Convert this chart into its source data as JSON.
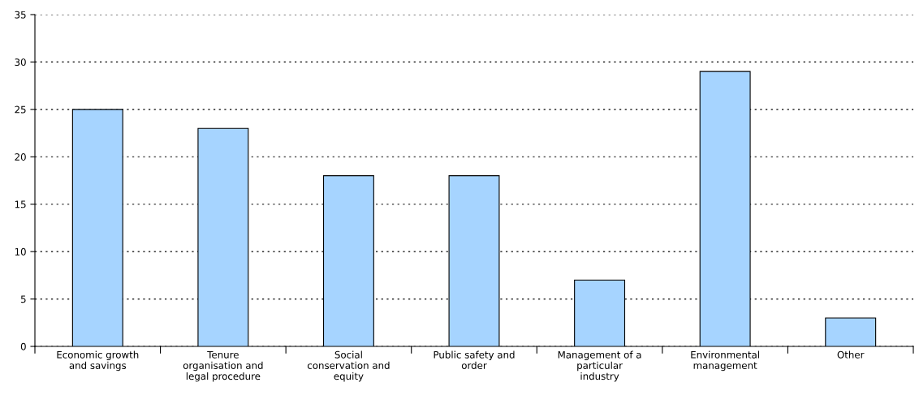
{
  "chart_data": {
    "type": "bar",
    "categories": [
      "Economic growth\nand savings",
      "Tenure\norganisation and\nlegal procedure",
      "Social\nconservation and\nequity",
      "Public safety and\norder",
      "Management of a\nparticular\nindustry",
      "Environmental\nmanagement",
      "Other"
    ],
    "values": [
      25,
      23,
      18,
      18,
      7,
      29,
      3
    ],
    "color": "#a6d4ff",
    "ylim": [
      0,
      35
    ],
    "yticks": [
      0,
      5,
      10,
      15,
      20,
      25,
      30,
      35
    ],
    "grid": "y"
  }
}
